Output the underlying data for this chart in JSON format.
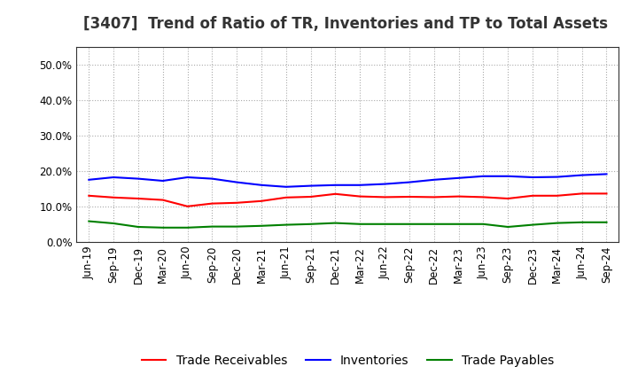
{
  "title": "[3407]  Trend of Ratio of TR, Inventories and TP to Total Assets",
  "labels": [
    "Jun-19",
    "Sep-19",
    "Dec-19",
    "Mar-20",
    "Jun-20",
    "Sep-20",
    "Dec-20",
    "Mar-21",
    "Jun-21",
    "Sep-21",
    "Dec-21",
    "Mar-22",
    "Jun-22",
    "Sep-22",
    "Dec-22",
    "Mar-23",
    "Jun-23",
    "Sep-23",
    "Dec-23",
    "Mar-24",
    "Jun-24",
    "Sep-24"
  ],
  "trade_receivables": [
    0.13,
    0.125,
    0.122,
    0.118,
    0.1,
    0.108,
    0.11,
    0.115,
    0.125,
    0.127,
    0.135,
    0.128,
    0.126,
    0.127,
    0.126,
    0.128,
    0.126,
    0.122,
    0.13,
    0.13,
    0.136,
    0.136
  ],
  "inventories": [
    0.175,
    0.182,
    0.178,
    0.172,
    0.182,
    0.178,
    0.168,
    0.16,
    0.155,
    0.158,
    0.16,
    0.16,
    0.163,
    0.168,
    0.175,
    0.18,
    0.185,
    0.185,
    0.182,
    0.183,
    0.188,
    0.191
  ],
  "trade_payables": [
    0.058,
    0.052,
    0.042,
    0.04,
    0.04,
    0.043,
    0.043,
    0.045,
    0.048,
    0.05,
    0.053,
    0.05,
    0.05,
    0.05,
    0.05,
    0.05,
    0.05,
    0.042,
    0.048,
    0.053,
    0.055,
    0.055
  ],
  "tr_color": "#ff0000",
  "inv_color": "#0000ff",
  "tp_color": "#008000",
  "ylim": [
    0.0,
    0.55
  ],
  "yticks": [
    0.0,
    0.1,
    0.2,
    0.3,
    0.4,
    0.5
  ],
  "background_color": "#ffffff",
  "grid_color": "#aaaaaa",
  "title_fontsize": 12,
  "legend_fontsize": 10,
  "tick_fontsize": 8.5,
  "title_color": "#333333"
}
